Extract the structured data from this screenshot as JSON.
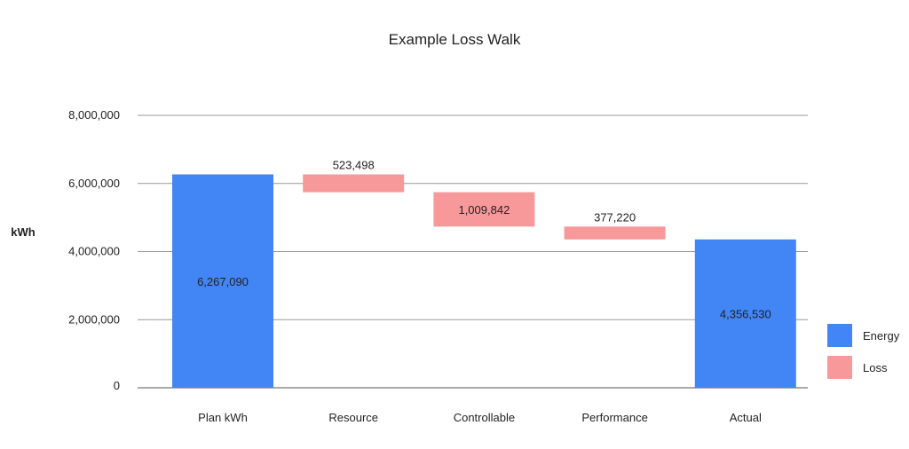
{
  "chart_data": {
    "type": "bar",
    "subtype": "waterfall",
    "title": "Example Loss Walk",
    "xlabel": "",
    "ylabel": "kWh",
    "ylim": [
      0,
      8000000
    ],
    "yticks": [
      0,
      2000000,
      4000000,
      6000000,
      8000000
    ],
    "ytick_labels": [
      "0",
      "2,000,000",
      "4,000,000",
      "6,000,000",
      "8,000,000"
    ],
    "grid": true,
    "legend_position": "right",
    "colors": {
      "Energy": "#4285f4",
      "Loss": "#f7999a"
    },
    "legend": [
      {
        "name": "Energy",
        "color": "#4285f4"
      },
      {
        "name": "Loss",
        "color": "#f7999a"
      }
    ],
    "categories": [
      "Plan kWh",
      "Resource",
      "Controllable",
      "Performance",
      "Actual"
    ],
    "bars": [
      {
        "category": "Plan kWh",
        "series": "Energy",
        "start": 0,
        "end": 6267090,
        "label": "6,267,090",
        "label_position": "inside"
      },
      {
        "category": "Resource",
        "series": "Loss",
        "start": 5743592,
        "end": 6267090,
        "label": "523,498",
        "label_position": "above"
      },
      {
        "category": "Controllable",
        "series": "Loss",
        "start": 4733750,
        "end": 5743592,
        "label": "1,009,842",
        "label_position": "inside"
      },
      {
        "category": "Performance",
        "series": "Loss",
        "start": 4356530,
        "end": 4733750,
        "label": "377,220",
        "label_position": "above"
      },
      {
        "category": "Actual",
        "series": "Energy",
        "start": 0,
        "end": 4356530,
        "label": "4,356,530",
        "label_position": "inside"
      }
    ]
  }
}
